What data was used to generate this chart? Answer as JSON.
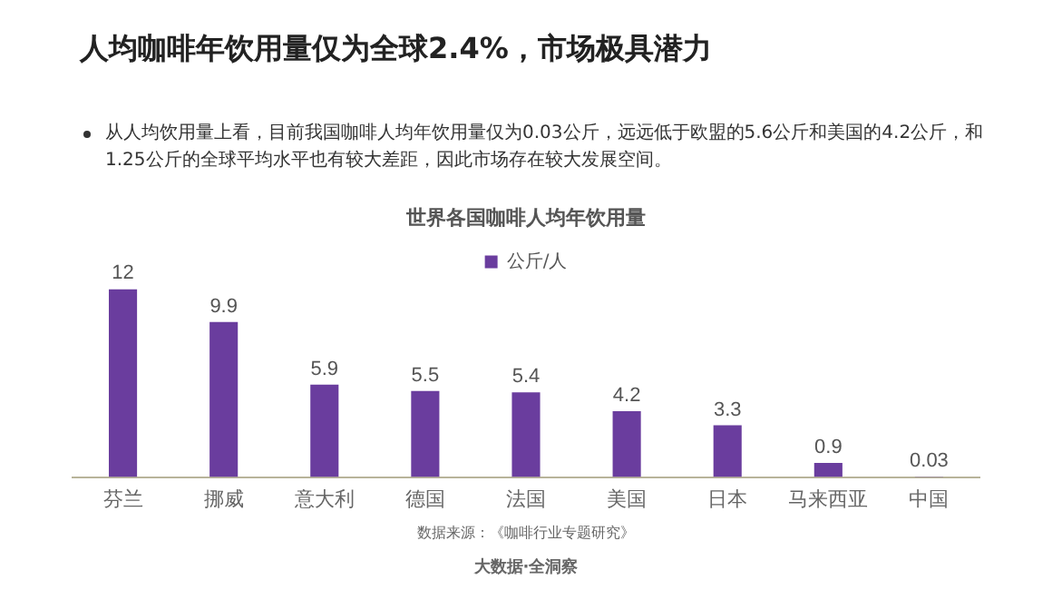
{
  "chart_data": {
    "type": "bar",
    "title": "人均咖啡年饮用量仅为全球2.4%，市场极具潜力",
    "subtitle": "从人均饮用量上看，目前我国咖啡人均年饮用量仅为0.03公斤，远远低于欧盟的5.6公斤和美国的4.2公斤，和1.25公斤的全球平均水平也有较大差距，因此市场存在较大发展空间。",
    "xlabel": "世界各国咖啡人均年饮用量",
    "categories": [
      "芬兰",
      "挪威",
      "意大利",
      "德国",
      "法国",
      "美国",
      "日本",
      "马来西亚",
      "中国"
    ],
    "series": [
      {
        "name": "公斤/人",
        "color": "#6a3d9e",
        "values": [
          12,
          9.9,
          5.9,
          5.5,
          5.4,
          4.2,
          3.3,
          0.9,
          0.03
        ]
      }
    ],
    "data_labels": true,
    "legend": "top",
    "grid": false,
    "annotations": [
      "数据来源：《咖啡行业专题研究》",
      "大数据·全洞察"
    ]
  }
}
